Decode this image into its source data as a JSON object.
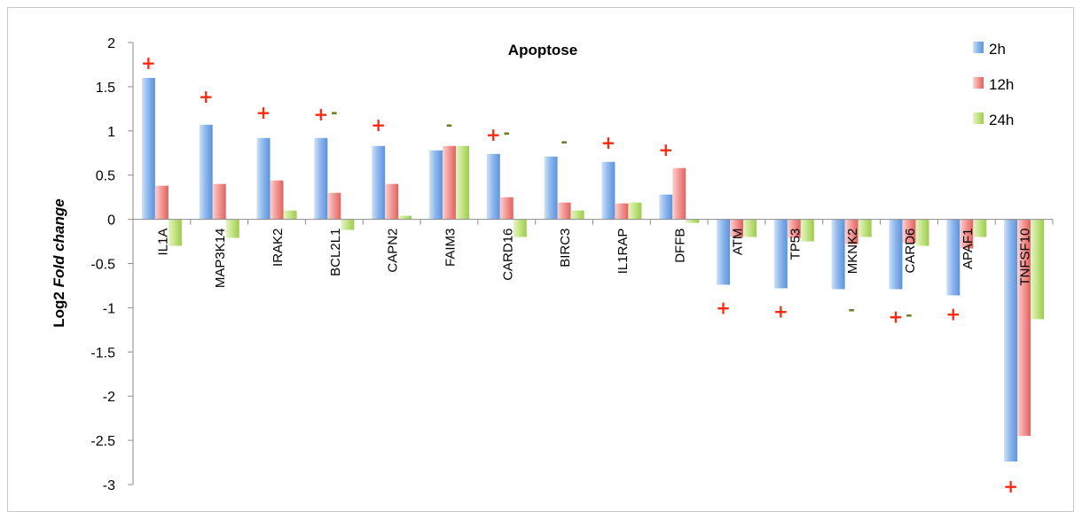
{
  "chart_data": {
    "type": "bar",
    "title": "Apoptose",
    "ylabel_prefix": "Log2 ",
    "ylabel_italic": "Fold change",
    "xlabel": "",
    "ylim": [
      -3,
      2
    ],
    "yticks": [
      "2",
      "1.5",
      "1",
      "0.5",
      "0",
      "-0.5",
      "-1",
      "-1.5",
      "-2",
      "-2.5",
      "-3"
    ],
    "grid": false,
    "legend_position": "top-right",
    "categories": [
      "IL1A",
      "MAP3K14",
      "IRAK2",
      "BCL2L1",
      "CAPN2",
      "FAIM3",
      "CARD16",
      "BIRC3",
      "IL1RAP",
      "DFFB",
      "ATM",
      "TP53",
      "MKNK2",
      "CARD6",
      "APAF1",
      "TNFSF10"
    ],
    "series": [
      {
        "name": "2h",
        "color": "#5b9bd5",
        "values": [
          1.6,
          1.07,
          0.92,
          0.92,
          0.83,
          0.78,
          0.74,
          0.71,
          0.65,
          0.28,
          -0.74,
          -0.78,
          -0.79,
          -0.79,
          -0.86,
          -2.74
        ]
      },
      {
        "name": "12h",
        "color": "#e8716f",
        "values": [
          0.38,
          0.4,
          0.44,
          0.3,
          0.4,
          0.83,
          0.25,
          0.19,
          0.18,
          0.58,
          -0.2,
          -0.21,
          -0.28,
          -0.27,
          -0.33,
          -2.45
        ]
      },
      {
        "name": "24h",
        "color": "#a9d25a",
        "values": [
          -0.3,
          -0.21,
          0.1,
          -0.12,
          0.04,
          0.83,
          -0.2,
          0.1,
          0.19,
          -0.04,
          -0.2,
          -0.25,
          -0.2,
          -0.3,
          -0.2,
          -1.13
        ]
      }
    ],
    "annotations": [
      {
        "category": "IL1A",
        "series": "2h",
        "symbol": "+",
        "y": 1.77
      },
      {
        "category": "MAP3K14",
        "series": "2h",
        "symbol": "+",
        "y": 1.39
      },
      {
        "category": "IRAK2",
        "series": "2h",
        "symbol": "+",
        "y": 1.21
      },
      {
        "category": "BCL2L1",
        "series": "2h",
        "symbol": "+",
        "y": 1.19
      },
      {
        "category": "BCL2L1",
        "series": "12h",
        "symbol": "-",
        "y": 1.19
      },
      {
        "category": "CAPN2",
        "series": "2h",
        "symbol": "+",
        "y": 1.07
      },
      {
        "category": "FAIM3",
        "series": "12h",
        "symbol": "-",
        "y": 1.05
      },
      {
        "category": "CARD16",
        "series": "2h",
        "symbol": "+",
        "y": 0.96
      },
      {
        "category": "CARD16",
        "series": "12h",
        "symbol": "-",
        "y": 0.96
      },
      {
        "category": "BIRC3",
        "series": "12h",
        "symbol": "-",
        "y": 0.86
      },
      {
        "category": "IL1RAP",
        "series": "2h",
        "symbol": "+",
        "y": 0.87
      },
      {
        "category": "DFFB",
        "series": "2h",
        "symbol": "+",
        "y": 0.79
      },
      {
        "category": "ATM",
        "series": "2h",
        "symbol": "+",
        "y": -1.0
      },
      {
        "category": "TP53",
        "series": "2h",
        "symbol": "+",
        "y": -1.04
      },
      {
        "category": "MKNK2",
        "series": "12h",
        "symbol": "-",
        "y": -1.04
      },
      {
        "category": "CARD6",
        "series": "2h",
        "symbol": "+",
        "y": -1.1
      },
      {
        "category": "CARD6",
        "series": "12h",
        "symbol": "-",
        "y": -1.1
      },
      {
        "category": "APAF1",
        "series": "2h",
        "symbol": "+",
        "y": -1.07
      },
      {
        "category": "TNFSF10",
        "series": "2h",
        "symbol": "+",
        "y": -3.02
      }
    ]
  }
}
